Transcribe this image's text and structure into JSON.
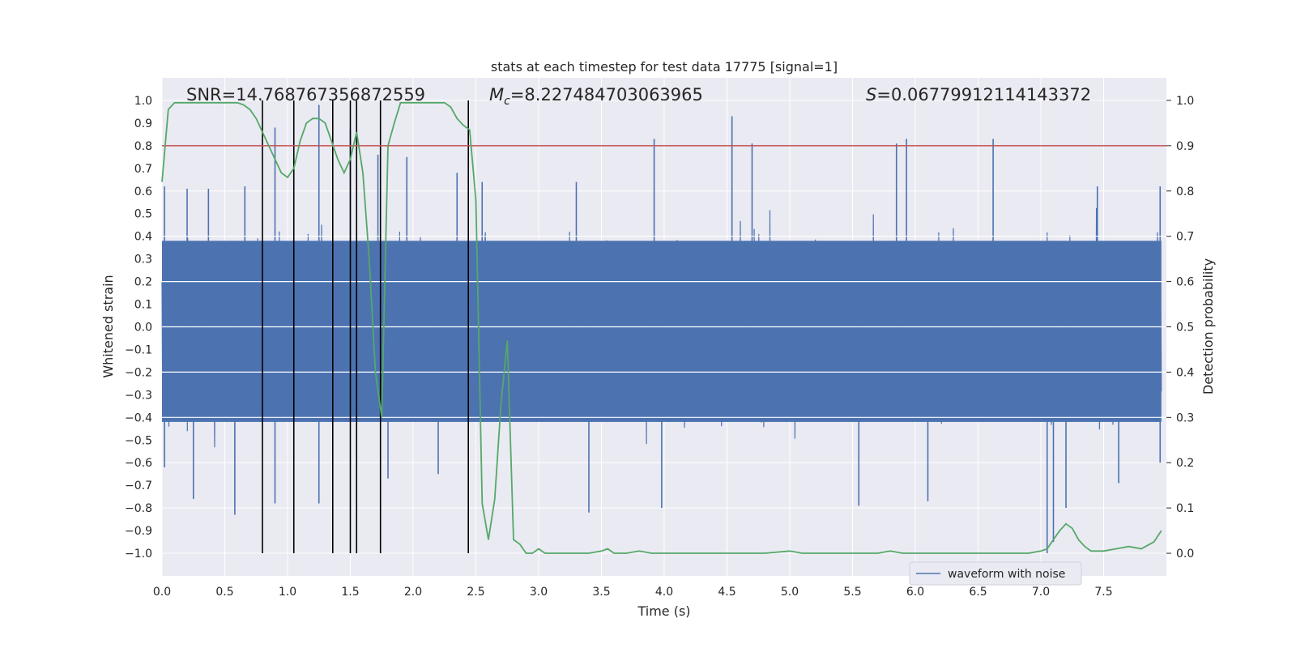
{
  "chart_data": {
    "type": "line",
    "title": "stats at each timestep for test data 17775 [signal=1]",
    "xlabel": "Time (s)",
    "ylabel": "Whitened strain",
    "y2label": "Detection probability",
    "xlim": [
      0.0,
      8.0
    ],
    "ylim": [
      -1.1,
      1.1
    ],
    "y2lim": [
      -0.05,
      1.05
    ],
    "xticks": [
      "0.0",
      "0.5",
      "1.0",
      "1.5",
      "2.0",
      "2.5",
      "3.0",
      "3.5",
      "4.0",
      "4.5",
      "5.0",
      "5.5",
      "6.0",
      "6.5",
      "7.0",
      "7.5"
    ],
    "yticks": [
      "1.0",
      "0.9",
      "0.8",
      "0.7",
      "0.6",
      "0.5",
      "0.4",
      "0.3",
      "0.2",
      "0.1",
      "0.0",
      "−0.1",
      "−0.2",
      "−0.3",
      "−0.4",
      "−0.5",
      "−0.6",
      "−0.7",
      "−0.8",
      "−0.9",
      "−1.0"
    ],
    "y2ticks": [
      "1.0",
      "0.9",
      "0.8",
      "0.7",
      "0.6",
      "0.5",
      "0.4",
      "0.3",
      "0.2",
      "0.1",
      "0.0"
    ],
    "grid": true,
    "legend_position": "lower-right",
    "annotations": {
      "snr": "SNR=14.768767356872559",
      "mc": "=8.227484703063965",
      "s": "=0.06779912114143372"
    },
    "threshold": 0.9,
    "event_markers": [
      0.8,
      1.05,
      1.36,
      1.5,
      1.55,
      1.74,
      2.44
    ],
    "series": [
      {
        "name": "waveform with noise",
        "axis": "left",
        "color": "#4c72b0",
        "envelope": {
          "peaks_positive": [
            [
              0.02,
              0.62
            ],
            [
              0.2,
              0.61
            ],
            [
              0.37,
              0.61
            ],
            [
              0.66,
              0.62
            ],
            [
              0.9,
              0.88
            ],
            [
              1.25,
              0.98
            ],
            [
              1.5,
              0.87
            ],
            [
              1.72,
              0.76
            ],
            [
              1.95,
              0.75
            ],
            [
              2.35,
              0.68
            ],
            [
              2.55,
              0.64
            ],
            [
              3.3,
              0.64
            ],
            [
              3.92,
              0.83
            ],
            [
              4.54,
              0.93
            ],
            [
              4.7,
              0.81
            ],
            [
              5.85,
              0.81
            ],
            [
              5.93,
              0.83
            ],
            [
              6.62,
              0.83
            ],
            [
              7.45,
              0.62
            ],
            [
              7.95,
              0.62
            ]
          ],
          "peaks_negative": [
            [
              0.02,
              -0.62
            ],
            [
              0.25,
              -0.76
            ],
            [
              0.58,
              -0.83
            ],
            [
              0.9,
              -0.78
            ],
            [
              1.25,
              -0.78
            ],
            [
              1.8,
              -0.67
            ],
            [
              2.2,
              -0.65
            ],
            [
              3.4,
              -0.82
            ],
            [
              3.98,
              -0.8
            ],
            [
              5.55,
              -0.79
            ],
            [
              6.1,
              -0.77
            ],
            [
              7.05,
              -1.0
            ],
            [
              7.1,
              -0.95
            ],
            [
              7.2,
              -0.8
            ],
            [
              7.62,
              -0.69
            ],
            [
              7.95,
              -0.6
            ]
          ],
          "typical_amplitude": 0.42
        }
      },
      {
        "name": "",
        "axis": "right",
        "color": "#55a868",
        "x": [
          0.0,
          0.05,
          0.1,
          0.2,
          0.3,
          0.4,
          0.5,
          0.6,
          0.65,
          0.7,
          0.75,
          0.8,
          0.85,
          0.9,
          0.95,
          1.0,
          1.05,
          1.1,
          1.15,
          1.2,
          1.25,
          1.3,
          1.35,
          1.4,
          1.45,
          1.5,
          1.55,
          1.6,
          1.65,
          1.7,
          1.75,
          1.8,
          1.85,
          1.9,
          2.0,
          2.1,
          2.2,
          2.25,
          2.3,
          2.35,
          2.4,
          2.45,
          2.5,
          2.55,
          2.6,
          2.65,
          2.7,
          2.75,
          2.8,
          2.85,
          2.9,
          2.95,
          3.0,
          3.05,
          3.1,
          3.2,
          3.4,
          3.5,
          3.55,
          3.6,
          3.7,
          3.8,
          3.9,
          4.0,
          4.1,
          4.2,
          4.4,
          4.6,
          4.8,
          5.0,
          5.1,
          5.3,
          5.5,
          5.7,
          5.8,
          5.9,
          6.0,
          6.2,
          6.4,
          6.6,
          6.8,
          6.9,
          7.0,
          7.05,
          7.1,
          7.15,
          7.2,
          7.25,
          7.3,
          7.35,
          7.4,
          7.5,
          7.6,
          7.7,
          7.8,
          7.9,
          7.96
        ],
        "y": [
          0.82,
          0.98,
          0.995,
          0.995,
          0.995,
          0.995,
          0.995,
          0.995,
          0.99,
          0.98,
          0.96,
          0.93,
          0.9,
          0.87,
          0.84,
          0.83,
          0.85,
          0.91,
          0.95,
          0.96,
          0.96,
          0.95,
          0.91,
          0.87,
          0.84,
          0.87,
          0.93,
          0.84,
          0.65,
          0.4,
          0.3,
          0.9,
          0.95,
          0.995,
          0.995,
          0.995,
          0.995,
          0.995,
          0.985,
          0.96,
          0.945,
          0.935,
          0.78,
          0.11,
          0.03,
          0.12,
          0.33,
          0.47,
          0.03,
          0.02,
          0.0,
          0.0,
          0.01,
          0.0,
          0.0,
          0.0,
          0.0,
          0.005,
          0.01,
          0.0,
          0.0,
          0.005,
          0.0,
          0.0,
          0.0,
          0.0,
          0.0,
          0.0,
          0.0,
          0.005,
          0.0,
          0.0,
          0.0,
          0.0,
          0.005,
          0.0,
          0.0,
          0.0,
          0.0,
          0.0,
          0.0,
          0.0,
          0.005,
          0.01,
          0.03,
          0.05,
          0.065,
          0.055,
          0.03,
          0.015,
          0.005,
          0.005,
          0.01,
          0.015,
          0.01,
          0.025,
          0.05
        ]
      }
    ]
  }
}
